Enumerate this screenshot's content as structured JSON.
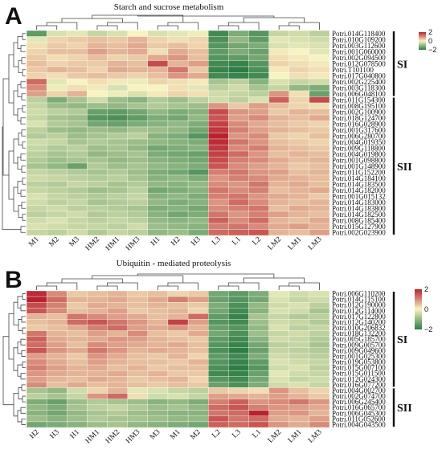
{
  "chart_data": [
    {
      "type": "heatmap",
      "panel": "A",
      "title": "Starch and sucrose metabolism",
      "columns": [
        "M1",
        "M2",
        "M3",
        "HM2",
        "HM1",
        "HM3",
        "H1",
        "H2",
        "H3",
        "L3",
        "L1",
        "L2",
        "LM2",
        "LM1",
        "LM3"
      ],
      "rows": [
        "Potri.014G118400",
        "Potri.010G109200",
        "Potri.003G112600",
        "Potri.001G060000",
        "Potri.002G094500",
        "Potri.012G078500",
        "Potri.T101100",
        "Potri.017G040800",
        "Potri.002G225400",
        "Potri.003G118300",
        "Potri.006G048100",
        "Potri.011G154300",
        "Potri.008G195100",
        "Potri.002G100900",
        "Potri.018G124700",
        "Potri.016G028900",
        "Potri.001G317600",
        "Potri.006G280700",
        "Potri.004G019350",
        "Potri.009G118800",
        "Potri.004G019800",
        "Potri.001G098800",
        "Potri.001G148900",
        "Potri.011G152200",
        "Potri.014G184100",
        "Potri.014G183500",
        "Potri.014G182000",
        "Potri.001G015132",
        "Potri.014G183000",
        "Potri.014G183800",
        "Potri.014G182500",
        "Potri.008G185400",
        "Potri.015G127900",
        "Potri.002G023900"
      ],
      "groups": [
        {
          "label": "SI",
          "start": 0,
          "end": 10
        },
        {
          "label": "SII",
          "start": 11,
          "end": 33
        }
      ],
      "colorbar": {
        "ticks": [
          "2",
          "0",
          "−2"
        ],
        "low": "#2e7d46",
        "mid": "#f7f3c2",
        "high": "#b8222f"
      },
      "values": [
        [
          -1.5,
          -0.3,
          -0.2,
          -0.5,
          -0.3,
          0.0,
          -0.3,
          -0.2,
          -0.1,
          -1.8,
          -1.2,
          -1.6,
          -0.5,
          -0.4,
          -0.6
        ],
        [
          -0.2,
          0.3,
          0.4,
          0.5,
          0.4,
          0.6,
          0.3,
          0.2,
          0.3,
          -1.7,
          -1.0,
          -1.5,
          -0.2,
          -0.3,
          -0.4
        ],
        [
          0.2,
          0.4,
          0.3,
          0.6,
          0.5,
          0.7,
          0.4,
          0.5,
          0.3,
          -1.6,
          -1.3,
          -1.2,
          -0.3,
          -0.2,
          -0.3
        ],
        [
          0.3,
          0.5,
          0.5,
          0.8,
          0.6,
          0.7,
          0.2,
          0.7,
          0.5,
          -1.5,
          -1.2,
          -1.4,
          0.1,
          0.0,
          -0.2
        ],
        [
          0.4,
          0.2,
          0.3,
          0.5,
          0.3,
          0.4,
          0.7,
          0.9,
          0.5,
          -1.6,
          -1.5,
          -1.3,
          0.2,
          0.1,
          0.0
        ],
        [
          0.5,
          0.3,
          0.4,
          0.4,
          0.6,
          0.5,
          1.6,
          0.6,
          0.8,
          -1.8,
          -1.9,
          -1.6,
          0.3,
          0.2,
          0.1
        ],
        [
          0.4,
          0.6,
          0.5,
          0.3,
          0.7,
          0.6,
          0.6,
          1.2,
          0.4,
          -1.9,
          -2.0,
          -1.7,
          0.1,
          0.3,
          0.2
        ],
        [
          0.3,
          0.2,
          0.4,
          0.5,
          0.4,
          0.3,
          0.5,
          0.9,
          0.7,
          -1.8,
          -1.9,
          -1.8,
          0.0,
          0.2,
          0.1
        ],
        [
          1.3,
          -0.2,
          0.0,
          0.2,
          0.1,
          -0.1,
          0.3,
          0.2,
          0.1,
          -0.8,
          -0.6,
          -1.1,
          -0.3,
          -0.5,
          -0.4
        ],
        [
          1.0,
          -0.1,
          0.2,
          0.1,
          -0.3,
          0.0,
          0.0,
          0.2,
          -0.2,
          -0.6,
          -0.4,
          -0.8,
          -0.5,
          -1.0,
          -1.2
        ],
        [
          0.8,
          0.3,
          0.6,
          0.0,
          -0.1,
          -0.3,
          0.1,
          0.3,
          0.2,
          -0.4,
          -0.5,
          -0.6,
          0.9,
          0.2,
          -1.4
        ],
        [
          -0.6,
          -1.2,
          -0.8,
          -0.4,
          -0.9,
          -1.1,
          -0.7,
          -0.9,
          -0.6,
          -0.4,
          -0.6,
          -0.3,
          1.4,
          0.3,
          1.6
        ],
        [
          -0.5,
          -0.9,
          -1.0,
          -0.9,
          -1.0,
          -0.8,
          -0.7,
          -0.8,
          -0.9,
          0.9,
          0.4,
          0.8,
          0.5,
          0.3,
          0.2
        ],
        [
          -0.4,
          -0.6,
          -0.7,
          -1.4,
          -1.5,
          -1.3,
          -1.0,
          -1.2,
          -1.1,
          1.6,
          0.9,
          0.8,
          0.4,
          0.6,
          0.5
        ],
        [
          -0.5,
          -0.8,
          -0.9,
          -1.6,
          -1.7,
          -1.5,
          -1.2,
          -1.3,
          -1.0,
          1.5,
          0.8,
          1.0,
          0.6,
          0.5,
          0.7
        ],
        [
          -0.3,
          -0.7,
          -0.8,
          -1.3,
          -1.4,
          -1.2,
          -1.1,
          -1.0,
          -1.2,
          1.7,
          1.0,
          0.7,
          0.5,
          0.4,
          0.3
        ],
        [
          -0.6,
          -0.9,
          -1.0,
          -0.9,
          -1.0,
          -0.8,
          -0.9,
          -1.0,
          -1.3,
          1.8,
          1.1,
          0.8,
          0.6,
          0.5,
          0.4
        ],
        [
          -0.7,
          -0.6,
          -0.9,
          -0.8,
          -0.7,
          -0.6,
          -1.1,
          -1.2,
          -1.6,
          2.0,
          0.9,
          1.0,
          0.4,
          0.3,
          0.5
        ],
        [
          -0.4,
          -0.5,
          -0.8,
          -0.7,
          -0.8,
          -0.9,
          -1.0,
          -1.1,
          -1.2,
          1.9,
          1.2,
          0.9,
          0.5,
          0.4,
          0.3
        ],
        [
          -0.5,
          -0.7,
          -0.6,
          -0.9,
          -0.8,
          -1.0,
          -1.3,
          -1.2,
          -1.1,
          1.8,
          1.0,
          1.1,
          0.6,
          0.5,
          0.4
        ],
        [
          -0.6,
          -0.8,
          -0.7,
          -1.0,
          -0.9,
          -0.8,
          -1.2,
          -1.3,
          -1.4,
          1.7,
          1.3,
          0.9,
          0.5,
          0.6,
          0.5
        ],
        [
          -0.7,
          -0.9,
          -0.8,
          -0.8,
          -1.0,
          -0.9,
          -1.1,
          -1.2,
          -1.3,
          1.6,
          1.1,
          1.0,
          0.7,
          0.5,
          0.6
        ],
        [
          -0.8,
          -1.0,
          -1.4,
          -0.7,
          -0.9,
          -0.8,
          -1.0,
          -1.1,
          -1.2,
          1.5,
          1.0,
          0.8,
          0.6,
          0.4,
          0.5
        ],
        [
          -0.5,
          -0.6,
          -0.7,
          -0.8,
          -0.7,
          -0.9,
          -1.2,
          -1.3,
          -1.6,
          1.1,
          1.2,
          0.9,
          0.8,
          0.5,
          0.6
        ],
        [
          -0.4,
          -0.5,
          -0.6,
          -0.7,
          -0.6,
          -0.8,
          -1.1,
          -1.0,
          -1.2,
          0.9,
          1.1,
          1.0,
          0.7,
          0.6,
          0.5
        ],
        [
          -0.6,
          -0.7,
          -0.5,
          -0.6,
          -0.8,
          -0.7,
          -1.0,
          -1.1,
          -1.0,
          1.0,
          0.9,
          1.2,
          0.6,
          0.7,
          0.5
        ],
        [
          -0.5,
          -0.6,
          -0.7,
          -0.9,
          -0.8,
          -0.6,
          -1.3,
          -1.2,
          -1.1,
          1.2,
          1.0,
          1.1,
          0.5,
          0.6,
          0.7
        ],
        [
          -0.3,
          -0.5,
          -0.6,
          -0.7,
          -0.6,
          -0.5,
          -1.1,
          -1.0,
          -1.2,
          1.1,
          1.2,
          0.9,
          0.7,
          0.6,
          0.4
        ],
        [
          -0.4,
          -0.6,
          -0.5,
          -0.8,
          -0.7,
          -0.6,
          -1.0,
          -1.2,
          -1.1,
          0.9,
          1.3,
          1.0,
          0.6,
          0.5,
          0.6
        ],
        [
          -0.5,
          -0.4,
          -0.6,
          -0.6,
          -0.7,
          -0.8,
          -1.2,
          -1.1,
          -1.3,
          1.0,
          1.1,
          1.2,
          0.5,
          0.7,
          0.6
        ],
        [
          -0.6,
          -0.5,
          -0.4,
          -0.7,
          -0.6,
          -0.7,
          -1.1,
          -1.3,
          -1.2,
          1.2,
          0.9,
          1.1,
          0.8,
          0.6,
          0.5
        ],
        [
          -0.4,
          -0.3,
          -0.5,
          -0.6,
          -0.5,
          -0.6,
          -1.0,
          -1.1,
          -1.0,
          1.4,
          1.0,
          1.3,
          0.6,
          0.5,
          0.7
        ],
        [
          -0.3,
          -0.4,
          -0.5,
          -0.5,
          -0.6,
          -0.4,
          -0.9,
          -1.0,
          -1.1,
          1.1,
          1.2,
          1.0,
          0.7,
          0.8,
          0.6
        ],
        [
          -0.5,
          -0.6,
          -0.4,
          -0.7,
          -0.5,
          -0.6,
          -1.0,
          -0.9,
          -1.2,
          1.3,
          1.4,
          1.5,
          0.6,
          0.5,
          0.8
        ]
      ]
    },
    {
      "type": "heatmap",
      "panel": "B",
      "title": "Ubiquitin - mediated proteolysis",
      "columns": [
        "H2",
        "H3",
        "H1",
        "HM1",
        "HM2",
        "HM3",
        "M3",
        "M1",
        "M2",
        "L2",
        "L3",
        "L1",
        "LM2",
        "LM1",
        "LM3"
      ],
      "rows": [
        "Potri.006G110200",
        "Potri.014G115100",
        "Potri.012G190000",
        "Potri.012G114000",
        "Potri.017G122800",
        "Potri.012G140200",
        "Potri.010G206832",
        "Potri.018G132200",
        "Potri.005G185700",
        "Potri.009G005700",
        "Potri.009G049600",
        "Potri.001G025300",
        "Potri.019G053800",
        "Potri.015G007100",
        "Potri.015G011500",
        "Potri.012G024300",
        "Potri.016G077200",
        "Potri.004G002700",
        "Potri.002G074700",
        "Potri.006G245400",
        "Potri.016G065700",
        "Potri.006G045300",
        "Potri.011G052600",
        "Potri.004G043500"
      ],
      "groups": [
        {
          "label": "SI",
          "start": 0,
          "end": 16
        },
        {
          "label": "SII",
          "start": 17,
          "end": 23
        }
      ],
      "colorbar": {
        "ticks": [
          "2",
          "0",
          "−2"
        ],
        "low": "#2e7d46",
        "mid": "#f7f3c2",
        "high": "#b8222f"
      },
      "values": [
        [
          1.9,
          1.0,
          0.4,
          0.5,
          0.6,
          0.4,
          0.5,
          0.3,
          0.4,
          -1.3,
          -1.5,
          -1.2,
          -0.2,
          -0.4,
          -0.3
        ],
        [
          2.0,
          1.3,
          0.6,
          0.6,
          0.7,
          0.5,
          0.7,
          1.1,
          0.8,
          -1.4,
          -1.6,
          -1.3,
          -0.3,
          -0.5,
          -0.4
        ],
        [
          1.6,
          1.1,
          0.4,
          0.7,
          0.6,
          0.5,
          0.6,
          0.5,
          0.4,
          -1.2,
          -1.7,
          -1.0,
          -0.4,
          -0.3,
          -0.6
        ],
        [
          1.5,
          1.0,
          0.5,
          0.6,
          0.8,
          0.4,
          0.5,
          0.6,
          0.3,
          -1.3,
          -1.8,
          -1.1,
          -0.3,
          -0.4,
          -0.8
        ],
        [
          0.6,
          0.5,
          1.2,
          1.0,
          0.8,
          0.7,
          0.5,
          0.6,
          1.3,
          -1.5,
          -1.9,
          -0.8,
          -0.5,
          -0.7,
          -0.6
        ],
        [
          0.5,
          0.6,
          1.3,
          1.5,
          1.2,
          0.9,
          0.6,
          1.7,
          0.8,
          -1.6,
          -1.8,
          -0.9,
          -0.4,
          -0.5,
          -0.7
        ],
        [
          0.4,
          0.5,
          0.7,
          1.1,
          1.3,
          0.8,
          0.7,
          0.9,
          0.6,
          -1.4,
          -1.6,
          -1.0,
          -0.3,
          -0.6,
          -0.5
        ],
        [
          1.2,
          0.6,
          0.5,
          0.8,
          0.6,
          1.0,
          0.5,
          0.4,
          0.7,
          -1.3,
          -1.7,
          -0.9,
          -0.5,
          -0.4,
          -0.6
        ],
        [
          1.4,
          0.7,
          0.6,
          0.7,
          0.9,
          0.8,
          0.6,
          0.5,
          0.4,
          -1.5,
          -1.8,
          -1.1,
          -0.4,
          -0.5,
          -0.7
        ],
        [
          1.3,
          0.8,
          0.5,
          1.0,
          0.8,
          0.7,
          0.6,
          0.7,
          0.5,
          -1.6,
          -1.9,
          -1.3,
          -0.6,
          -0.5,
          -0.8
        ],
        [
          1.5,
          0.9,
          0.7,
          1.2,
          0.9,
          0.6,
          0.7,
          0.6,
          0.5,
          -1.7,
          -2.0,
          -1.4,
          -0.5,
          -0.6,
          -0.7
        ],
        [
          0.8,
          0.6,
          0.4,
          0.9,
          0.7,
          0.5,
          0.4,
          0.6,
          0.3,
          -1.5,
          -1.8,
          -1.2,
          -0.4,
          -0.5,
          -0.6
        ],
        [
          1.0,
          0.7,
          0.5,
          0.8,
          0.6,
          0.5,
          0.5,
          0.4,
          0.6,
          -1.6,
          -1.9,
          -1.5,
          -0.3,
          -0.4,
          -0.5
        ],
        [
          1.1,
          0.8,
          0.6,
          0.7,
          0.5,
          0.6,
          0.4,
          0.5,
          0.5,
          -1.7,
          -2.0,
          -1.6,
          -0.4,
          -0.3,
          -0.6
        ],
        [
          0.9,
          0.7,
          0.6,
          0.6,
          0.7,
          0.5,
          0.6,
          0.4,
          0.4,
          -1.8,
          -1.9,
          -1.4,
          -0.2,
          -0.4,
          -0.5
        ],
        [
          0.8,
          0.6,
          0.5,
          0.7,
          0.6,
          0.4,
          0.5,
          0.6,
          0.3,
          -1.6,
          -1.8,
          -1.3,
          -0.3,
          -0.5,
          -0.4
        ],
        [
          1.0,
          0.5,
          0.7,
          0.5,
          0.6,
          0.5,
          0.4,
          0.5,
          0.4,
          -1.4,
          -1.7,
          -1.2,
          -0.4,
          -0.3,
          -0.5
        ],
        [
          -0.8,
          -1.0,
          -0.4,
          0.3,
          0.6,
          -0.2,
          -0.3,
          -0.5,
          -0.6,
          0.4,
          0.3,
          0.2,
          0.9,
          0.5,
          0.3
        ],
        [
          -0.6,
          -0.8,
          -0.5,
          0.9,
          1.3,
          0.2,
          -0.4,
          -0.3,
          -0.5,
          0.8,
          0.7,
          0.6,
          0.8,
          0.6,
          0.4
        ],
        [
          -1.2,
          -1.4,
          -0.9,
          -0.7,
          -0.8,
          -0.9,
          -1.1,
          -1.0,
          -1.2,
          1.1,
          1.4,
          0.9,
          1.0,
          1.2,
          0.9
        ],
        [
          -1.0,
          -1.2,
          -0.8,
          -0.6,
          -0.5,
          -0.7,
          -0.9,
          -0.8,
          -1.0,
          1.3,
          1.5,
          1.1,
          0.9,
          0.8,
          0.7
        ],
        [
          -1.1,
          -1.3,
          -1.0,
          -0.8,
          -0.7,
          -0.9,
          -1.0,
          -1.1,
          -1.1,
          1.2,
          1.3,
          2.0,
          0.8,
          0.9,
          0.6
        ],
        [
          -0.9,
          -1.1,
          -0.9,
          -0.7,
          -0.8,
          -0.8,
          -0.9,
          -1.0,
          -1.0,
          1.5,
          1.2,
          1.3,
          0.7,
          0.6,
          0.8
        ],
        [
          -1.3,
          -1.2,
          -1.1,
          -0.9,
          -0.8,
          -1.0,
          -1.1,
          -1.2,
          -1.3,
          1.4,
          1.3,
          1.5,
          0.9,
          0.7,
          1.0
        ]
      ]
    }
  ]
}
